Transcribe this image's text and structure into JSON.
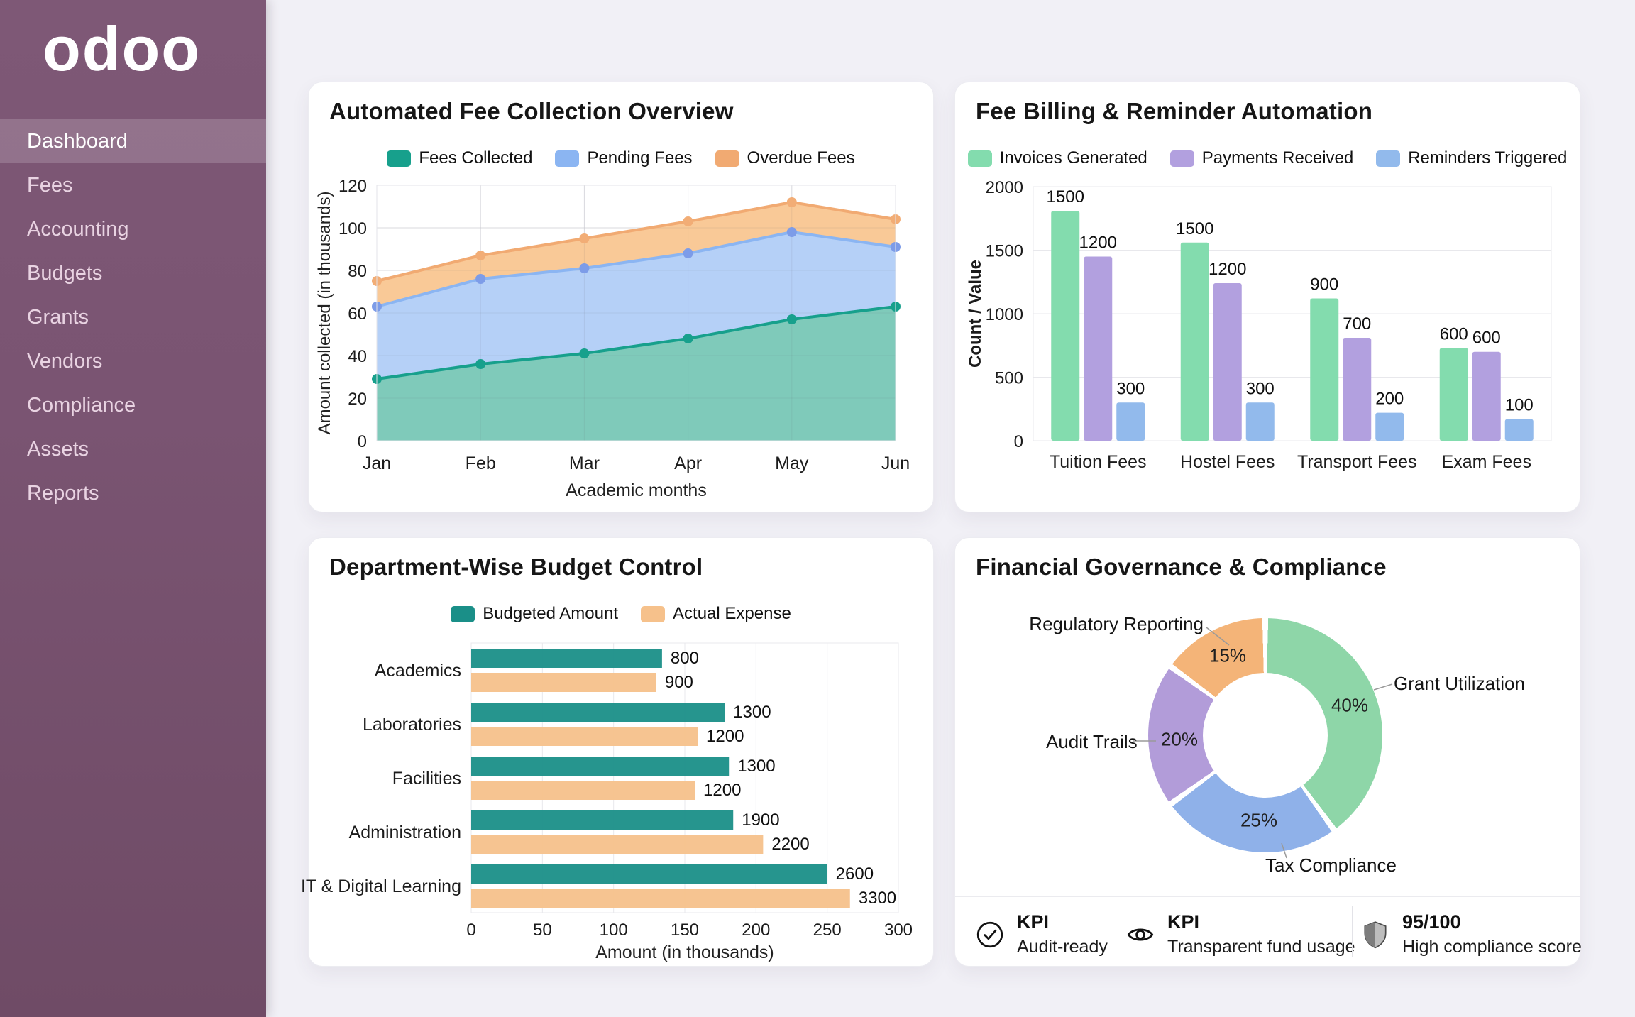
{
  "sidebar": {
    "logo": "odoo",
    "bg_color": "#7b5573",
    "items": [
      {
        "label": "Dashboard",
        "active": true
      },
      {
        "label": "Fees",
        "active": false
      },
      {
        "label": "Accounting",
        "active": false
      },
      {
        "label": "Budgets",
        "active": false
      },
      {
        "label": "Grants",
        "active": false
      },
      {
        "label": "Vendors",
        "active": false
      },
      {
        "label": "Compliance",
        "active": false
      },
      {
        "label": "Assets",
        "active": false
      },
      {
        "label": "Reports",
        "active": false
      }
    ]
  },
  "chart_data": [
    {
      "id": "fee-collection-overview",
      "type": "area",
      "title": "Automated Fee Collection Overview",
      "x": [
        "Jan",
        "Feb",
        "Mar",
        "Apr",
        "May",
        "Jun"
      ],
      "xlabel": "Academic months",
      "ylabel": "Amount collected (in thousands)",
      "ylim": [
        0,
        120
      ],
      "yticks": [
        0,
        20,
        40,
        60,
        80,
        100,
        120
      ],
      "grid": true,
      "legend_position": "top",
      "series": [
        {
          "name": "Fees Collected",
          "color": "#17a08c",
          "dot": "#17a08c",
          "fill": "#7fcaba",
          "values": [
            29,
            36,
            41,
            48,
            57,
            63
          ]
        },
        {
          "name": "Pending Fees",
          "color": "#8bb5f2",
          "dot": "#7d9ce8",
          "fill": "#b5d0f7",
          "values": [
            63,
            76,
            81,
            88,
            98,
            91
          ]
        },
        {
          "name": "Overdue Fees",
          "color": "#f1aa72",
          "dot": "#f2ad76",
          "fill": "#f9c997",
          "values": [
            75,
            87,
            95,
            103,
            112,
            104
          ]
        }
      ]
    },
    {
      "id": "fee-billing-reminder-automation",
      "type": "bar",
      "title": "Fee Billing & Reminder Automation",
      "categories": [
        "Tuition Fees",
        "Hostel Fees",
        "Transport Fees",
        "Exam Fees"
      ],
      "ylabel": "Count / Value",
      "ylim": [
        0,
        2000
      ],
      "yticks": [
        0,
        500,
        1000,
        1500,
        2000
      ],
      "grid": true,
      "legend_position": "top",
      "series": [
        {
          "name": "Invoices Generated",
          "color": "#83dcae",
          "values": [
            1500,
            1500,
            900,
            600
          ],
          "visual": [
            1810,
            1560,
            1120,
            730
          ]
        },
        {
          "name": "Payments Received",
          "color": "#b2a0df",
          "values": [
            1200,
            1200,
            700,
            600
          ],
          "visual": [
            1450,
            1240,
            810,
            700
          ]
        },
        {
          "name": "Reminders Triggered",
          "color": "#92baec",
          "values": [
            300,
            300,
            200,
            100
          ],
          "visual": [
            300,
            300,
            220,
            170
          ]
        }
      ]
    },
    {
      "id": "department-wise-budget-control",
      "type": "hbar",
      "title": "Department-Wise Budget Control",
      "categories": [
        "Academics",
        "Laboratories",
        "Facilities",
        "Administration",
        "IT & Digital Learning"
      ],
      "xlabel": "Amount (in thousands)",
      "xlim": [
        0,
        300
      ],
      "xticks": [
        0,
        50,
        100,
        150,
        200,
        250,
        300
      ],
      "grid": true,
      "legend_position": "top",
      "series": [
        {
          "name": "Budgeted Amount",
          "color": "#1a8f88",
          "values": [
            800,
            1300,
            1300,
            1900,
            2600
          ],
          "visual_axis_units": [
            134,
            178,
            181,
            184,
            250
          ]
        },
        {
          "name": "Actual Expense",
          "color": "#f6c18b",
          "values": [
            900,
            1200,
            1200,
            2200,
            3300
          ],
          "visual_axis_units": [
            130,
            159,
            157,
            205,
            266
          ]
        }
      ]
    },
    {
      "id": "financial-governance-compliance",
      "type": "pie",
      "donut": true,
      "title": "Financial Governance & Compliance",
      "slices": [
        {
          "label": "Grant Utilization",
          "pct": 40,
          "pct_label": "40%",
          "color": "#8ed6a8"
        },
        {
          "label": "Tax Compliance",
          "pct": 25,
          "pct_label": "25%",
          "color": "#8fb1e9"
        },
        {
          "label": "Audit Trails",
          "pct": 20,
          "pct_label": "20%",
          "color": "#b29cd9"
        },
        {
          "label": "Regulatory Reporting",
          "pct": 15,
          "pct_label": "15%",
          "color": "#f4b478"
        }
      ],
      "kpis": [
        {
          "icon": "check-circle-icon",
          "title": "KPI",
          "subtitle": "Audit-ready"
        },
        {
          "icon": "eye-icon",
          "title": "KPI",
          "subtitle": "Transparent fund usage"
        },
        {
          "icon": "shield-icon",
          "title": "95/100",
          "subtitle": "High compliance score"
        }
      ]
    }
  ]
}
